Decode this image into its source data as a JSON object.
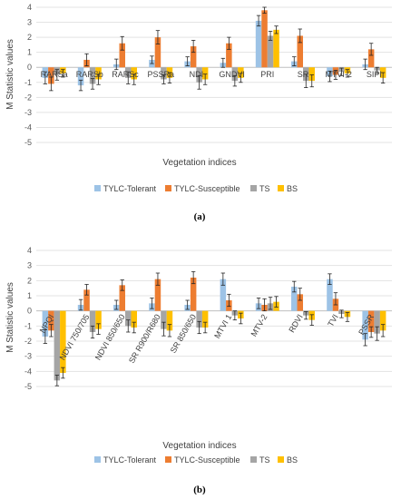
{
  "colors": [
    "#9dc3e6",
    "#ed7d31",
    "#a5a5a5",
    "#ffc000"
  ],
  "chart_data": [
    {
      "type": "bar",
      "panel_label": "(a)",
      "ylabel": "M Statistic values",
      "xlabel": "Vegetation indices",
      "ylim": [
        -5,
        4
      ],
      "yticks": [
        "4",
        "3",
        "2",
        "1",
        "0",
        "-1",
        "-2",
        "-3",
        "-4",
        "-5"
      ],
      "grid": true,
      "legend_position": "bottom",
      "categories": [
        "RARSa",
        "RARSb",
        "RARSc",
        "PSSRa",
        "NDI",
        "GNDVI",
        "PRI",
        "SR",
        "MTVI-2",
        "SIPI"
      ],
      "series": [
        {
          "name": "TYLC-Tolerant",
          "values": [
            -0.7,
            -1.2,
            0.2,
            0.5,
            0.4,
            0.3,
            3.1,
            0.4,
            -0.6,
            0.2
          ],
          "errors": [
            0.4,
            0.35,
            0.35,
            0.25,
            0.3,
            0.3,
            0.35,
            0.3,
            0.35,
            0.35
          ]
        },
        {
          "name": "TYLC-Susceptible",
          "values": [
            -1.1,
            0.5,
            1.6,
            2.0,
            1.4,
            1.6,
            3.8,
            2.1,
            -0.5,
            1.2
          ],
          "errors": [
            0.45,
            0.4,
            0.45,
            0.45,
            0.4,
            0.4,
            0.2,
            0.45,
            0.3,
            0.4
          ]
        },
        {
          "name": "TS",
          "values": [
            -0.5,
            -1.1,
            -0.7,
            -0.8,
            -1.0,
            -0.9,
            2.1,
            -0.9,
            -0.3,
            -0.2
          ],
          "errors": [
            0.35,
            0.35,
            0.4,
            0.3,
            0.45,
            0.35,
            0.3,
            0.45,
            0.25,
            0.2
          ]
        },
        {
          "name": "BS",
          "values": [
            -0.4,
            -0.8,
            -0.8,
            -0.7,
            -0.8,
            -0.7,
            2.5,
            -0.9,
            -0.4,
            -0.7
          ],
          "errors": [
            0.25,
            0.35,
            0.35,
            0.35,
            0.35,
            0.3,
            0.25,
            0.4,
            0.25,
            0.35
          ]
        }
      ]
    },
    {
      "type": "bar",
      "panel_label": "(b)",
      "ylabel": "M Statistic values",
      "xlabel": "Vegetation indices",
      "ylim": [
        -5,
        4
      ],
      "yticks": [
        "4",
        "3",
        "2",
        "1",
        "0",
        "-1",
        "-2",
        "-3",
        "-4",
        "-5"
      ],
      "grid": true,
      "legend_position": "bottom",
      "categories": [
        "NPQI",
        "NDVI 750/705",
        "NDVI 850/650",
        "SR R900/R680",
        "SR 850/650",
        "MTVI 1",
        "MTV-2",
        "RDVI",
        "TVI",
        "PSSR"
      ],
      "series": [
        {
          "name": "TYLC-Tolerant",
          "values": [
            -1.7,
            0.4,
            0.4,
            0.5,
            0.4,
            2.1,
            0.5,
            1.6,
            2.1,
            -1.9
          ],
          "errors": [
            0.45,
            0.35,
            0.3,
            0.35,
            0.3,
            0.4,
            0.35,
            0.35,
            0.35,
            0.4
          ]
        },
        {
          "name": "TYLC-Susceptible",
          "values": [
            -1.3,
            1.4,
            1.7,
            2.1,
            2.2,
            0.7,
            0.4,
            1.1,
            0.8,
            -1.4
          ],
          "errors": [
            0.4,
            0.35,
            0.35,
            0.4,
            0.4,
            0.4,
            0.4,
            0.4,
            0.4,
            0.35
          ]
        },
        {
          "name": "TS",
          "values": [
            -4.6,
            -1.4,
            -1.0,
            -1.2,
            -1.1,
            -0.3,
            0.5,
            -0.3,
            -0.2,
            -1.5
          ],
          "errors": [
            0.35,
            0.4,
            0.4,
            0.45,
            0.4,
            0.3,
            0.4,
            0.25,
            0.25,
            0.45
          ]
        },
        {
          "name": "BS",
          "values": [
            -4.1,
            -1.2,
            -1.1,
            -1.3,
            -1.1,
            -0.5,
            0.6,
            -0.6,
            -0.4,
            -1.3
          ],
          "errors": [
            0.35,
            0.35,
            0.35,
            0.4,
            0.35,
            0.35,
            0.35,
            0.35,
            0.3,
            0.4
          ]
        }
      ]
    }
  ]
}
